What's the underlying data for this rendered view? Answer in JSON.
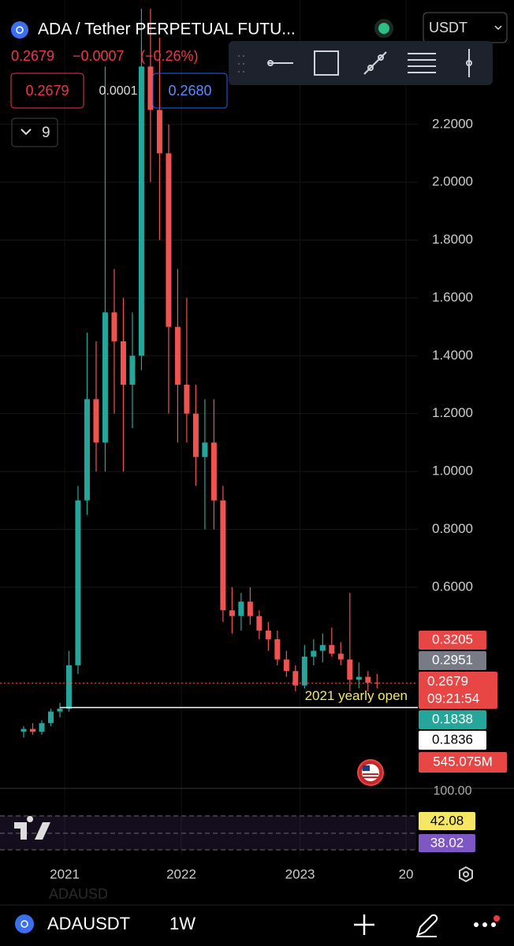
{
  "header": {
    "title": "ADA / Tether PERPETUAL FUTU...",
    "currency": "USDT",
    "last": "0.2679",
    "change": "−0.0007",
    "change_pct": "(−0.26%)",
    "bid": "0.2679",
    "spread": "0.0001",
    "ask": "0.2680",
    "indicators": "9"
  },
  "chart_data": {
    "type": "candlestick",
    "open": [
      0.1,
      0.11,
      0.1,
      0.13,
      0.17,
      0.18,
      0.33,
      0.9,
      1.25,
      1.1,
      1.55,
      1.45,
      1.3,
      1.4,
      2.4,
      2.25,
      2.1,
      1.5,
      1.3,
      1.2,
      1.05,
      1.1,
      0.9,
      0.52,
      0.5,
      0.55,
      0.5,
      0.45,
      0.42,
      0.35,
      0.31,
      0.26,
      0.36,
      0.38,
      0.4,
      0.37,
      0.35,
      0.28,
      0.29,
      0.27
    ],
    "high": [
      0.12,
      0.13,
      0.14,
      0.18,
      0.2,
      0.38,
      0.95,
      1.48,
      1.45,
      2.4,
      1.7,
      1.6,
      1.55,
      2.6,
      2.6,
      2.5,
      2.2,
      1.7,
      1.6,
      1.3,
      1.25,
      1.25,
      0.95,
      0.6,
      0.58,
      0.6,
      0.52,
      0.48,
      0.45,
      0.38,
      0.33,
      0.4,
      0.42,
      0.44,
      0.46,
      0.41,
      0.58,
      0.34,
      0.31,
      0.3
    ],
    "low": [
      0.08,
      0.09,
      0.09,
      0.12,
      0.15,
      0.17,
      0.3,
      0.85,
      1.0,
      1.0,
      1.2,
      1.0,
      1.15,
      1.35,
      2.0,
      1.8,
      1.2,
      1.1,
      1.1,
      0.95,
      0.8,
      0.8,
      0.48,
      0.44,
      0.45,
      0.47,
      0.42,
      0.38,
      0.33,
      0.29,
      0.24,
      0.25,
      0.33,
      0.34,
      0.36,
      0.33,
      0.24,
      0.25,
      0.24,
      0.25
    ],
    "close": [
      0.11,
      0.1,
      0.13,
      0.17,
      0.18,
      0.33,
      0.9,
      1.25,
      1.1,
      1.55,
      1.45,
      1.3,
      1.4,
      2.4,
      2.25,
      2.1,
      1.5,
      1.3,
      1.2,
      1.05,
      1.1,
      0.9,
      0.52,
      0.5,
      0.55,
      0.5,
      0.45,
      0.42,
      0.35,
      0.31,
      0.26,
      0.36,
      0.38,
      0.4,
      0.37,
      0.35,
      0.28,
      0.29,
      0.27,
      0.2679
    ],
    "up_color": "#26a69a",
    "down_color": "#ef5350",
    "ylim": [
      -0.09,
      2.63
    ],
    "yticks": [
      {
        "value": 0.6,
        "label": "0.6000"
      },
      {
        "value": 0.8,
        "label": "0.8000"
      },
      {
        "value": 1.0,
        "label": "1.0000"
      },
      {
        "value": 1.2,
        "label": "1.2000"
      },
      {
        "value": 1.4,
        "label": "1.4000"
      },
      {
        "value": 1.6,
        "label": "1.6000"
      },
      {
        "value": 1.8,
        "label": "1.8000"
      },
      {
        "value": 2.0,
        "label": "2.0000"
      },
      {
        "value": 2.2,
        "label": "2.2000"
      }
    ],
    "xlim": [
      -2.61,
      43.5
    ],
    "xticks": [
      {
        "value": 4.53,
        "label": "2021"
      },
      {
        "value": 17.4,
        "label": "2022"
      },
      {
        "value": 30.5,
        "label": "2023"
      },
      {
        "value": 42.2,
        "label": "20"
      }
    ],
    "grid": true,
    "last_price": 0.2679,
    "level": {
      "value": 0.1838,
      "label": "2021 yearly open"
    },
    "tags": {
      "high": 0.3205,
      "prev": 0.2951,
      "last": 0.2679,
      "countdown": "09:21:54",
      "level": 0.1838,
      "low": 0.1836,
      "volume": "545.075M"
    },
    "rsi": {
      "top": "100.00",
      "rsi": "42.08",
      "ma": "38.02"
    }
  },
  "footer": {
    "ghost": "ADAUSD",
    "symbol": "ADAUSDT",
    "interval": "1W"
  }
}
